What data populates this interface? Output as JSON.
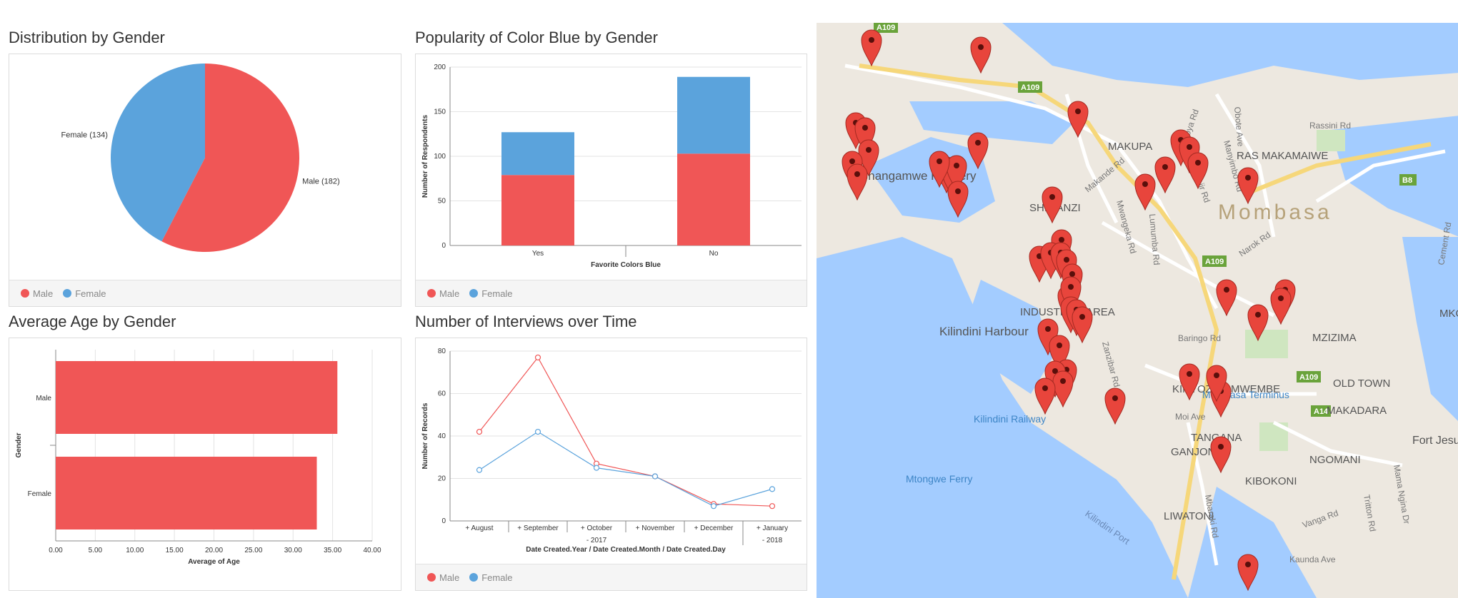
{
  "colors": {
    "male": "#f05656",
    "female": "#5ba3dc",
    "grid": "#e3e3e3",
    "axis": "#888888"
  },
  "legend": {
    "male": "Male",
    "female": "Female"
  },
  "panels": {
    "gender": {
      "title": "Distribution by Gender"
    },
    "blue": {
      "title": "Popularity of Color Blue by Gender"
    },
    "age": {
      "title": "Average Age by Gender"
    },
    "time": {
      "title": "Number of Interviews over Time"
    }
  },
  "chart_data": [
    {
      "id": "gender",
      "type": "pie",
      "title": "Distribution by Gender",
      "slices": [
        {
          "label": "Male",
          "value": 182,
          "text": "Male (182)"
        },
        {
          "label": "Female",
          "value": 134,
          "text": "Female (134)"
        }
      ],
      "legend": [
        "Male",
        "Female"
      ],
      "legend_position": "bottom"
    },
    {
      "id": "blue",
      "type": "bar",
      "stacked": true,
      "title": "Popularity of Color Blue by Gender",
      "xlabel": "Favorite Colors Blue",
      "ylabel": "Number of Respondents",
      "categories": [
        "Yes",
        "No"
      ],
      "series": [
        {
          "name": "Male",
          "values": [
            79,
            103
          ]
        },
        {
          "name": "Female",
          "values": [
            48,
            86
          ]
        }
      ],
      "ylim": [
        0,
        200
      ],
      "yticks": [
        0,
        50,
        100,
        150,
        200
      ],
      "grid": true,
      "legend_position": "bottom"
    },
    {
      "id": "age",
      "type": "bar",
      "orientation": "horizontal",
      "title": "Average Age by Gender",
      "xlabel": "Average of Age",
      "ylabel": "Gender",
      "categories": [
        "Male",
        "Female"
      ],
      "series": [
        {
          "name": "Average of Age",
          "values": [
            35.6,
            33.0
          ]
        }
      ],
      "xlim": [
        0,
        40
      ],
      "xticks": [
        "0.00",
        "5.00",
        "10.00",
        "15.00",
        "20.00",
        "25.00",
        "30.00",
        "35.00",
        "40.00"
      ],
      "grid": true
    },
    {
      "id": "time",
      "type": "line",
      "title": "Number of Interviews over Time",
      "xlabel": "Date Created.Year / Date Created.Month / Date Created.Day",
      "ylabel": "Number of Records",
      "categories": [
        "+ August",
        "+ September",
        "+ October",
        "+ November",
        "+ December",
        "+ January"
      ],
      "year_labels": [
        {
          "text": "- 2017",
          "span": [
            0,
            4
          ]
        },
        {
          "text": "- 2018",
          "span": [
            5,
            5
          ]
        }
      ],
      "series": [
        {
          "name": "Male",
          "values": [
            42,
            77,
            27,
            21,
            8,
            7
          ]
        },
        {
          "name": "Female",
          "values": [
            24,
            42,
            25,
            21,
            7,
            15
          ]
        }
      ],
      "ylim": [
        0,
        80
      ],
      "yticks": [
        0,
        20,
        40,
        60,
        80
      ],
      "grid": true,
      "legend_position": "bottom"
    }
  ],
  "map": {
    "city_label": "Mombasa",
    "place_labels": [
      "MAKUPA",
      "RAS MAKAMAIWE",
      "SHIMANZI",
      "INDUSTRIAL AREA",
      "Kilindini Harbour",
      "MZIZIMA",
      "KINYOZI",
      "MWEMBE",
      "OLD TOWN",
      "MAKADARA",
      "TANGANA",
      "GANJONI",
      "NGOMANI",
      "KIBOKONI",
      "LIWATONI",
      "Fort Jesus",
      "Changamwe Refinery",
      "MKO"
    ],
    "road_labels": [
      "Makande Rd",
      "Mwangeka Rd",
      "Lumumba Rd",
      "Moi Ave",
      "Baringo Rd",
      "Narok Rd",
      "Zanzibar Rd",
      "Kaunda Ave",
      "Mama Ngina Dr",
      "Vanga Rd",
      "Mbaraki Rd",
      "Tritton Rd",
      "Wajir Rd",
      "Obote Ave",
      "Rassini Rd",
      "Manyimbo Rd",
      "Oloya Rd",
      "Cement Rd"
    ],
    "route_badges": [
      "A109",
      "A109",
      "A109",
      "A109",
      "A14",
      "B8"
    ],
    "poi_labels": [
      "Mombasa Terminus",
      "Kilindini Railway",
      "Mtongwe Ferry",
      "Kilindini Port"
    ]
  }
}
